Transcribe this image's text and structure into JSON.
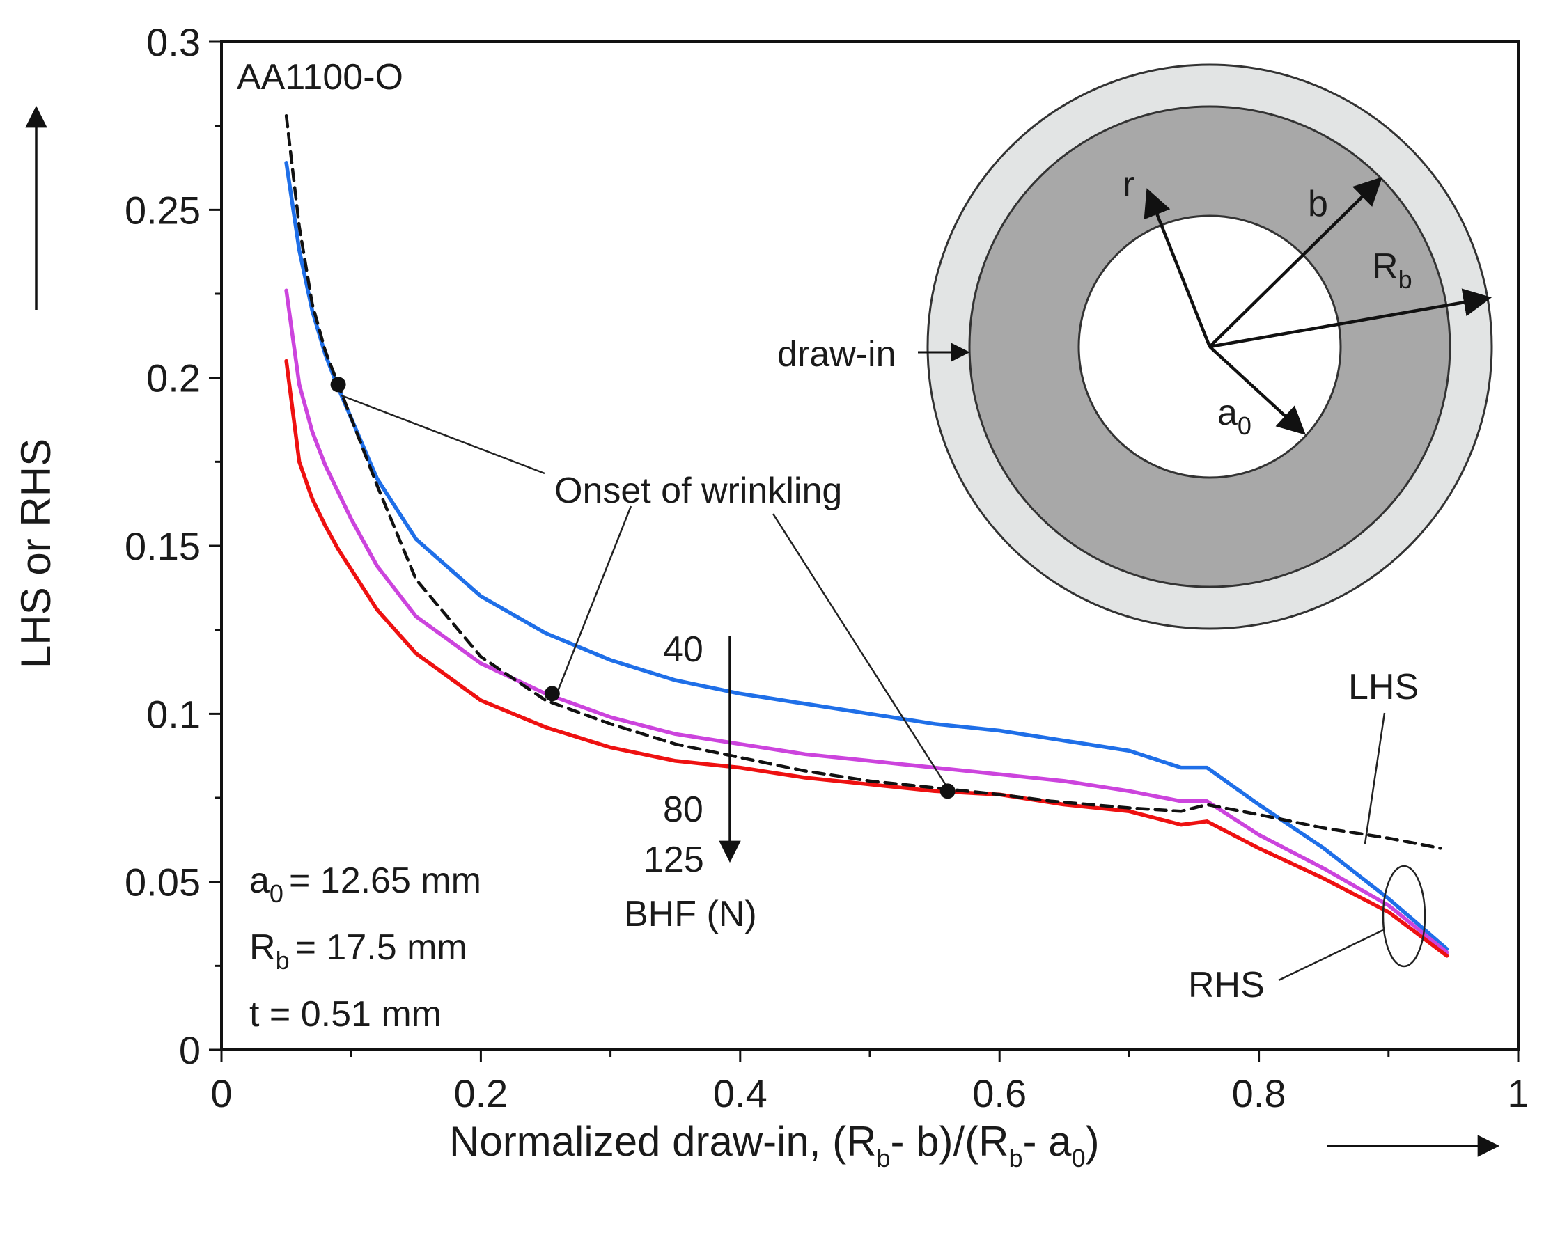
{
  "chart_data": {
    "type": "line",
    "title": "AA1100-O",
    "xlabel": "Normalized draw-in, (R",
    "xlabel_parts": {
      "part1": "Normalized draw-in, (R",
      "sub1": "b",
      "part2": "- b)/(R",
      "sub2": "b",
      "part3": "- a",
      "sub3": "0",
      "part4": ")"
    },
    "ylabel": "LHS or RHS",
    "xlim": [
      0,
      1
    ],
    "ylim": [
      0,
      0.3
    ],
    "xticks": [
      0,
      0.2,
      0.4,
      0.6,
      0.8,
      1
    ],
    "xtick_labels": [
      "0",
      "0.2",
      "0.4",
      "0.6",
      "0.8",
      "1"
    ],
    "yticks": [
      0,
      0.05,
      0.1,
      0.15,
      0.2,
      0.25,
      0.3
    ],
    "ytick_labels": [
      "0",
      "0.05",
      "0.1",
      "0.15",
      "0.2",
      "0.25",
      "0.3"
    ],
    "series": [
      {
        "name": "40",
        "role": "RHS",
        "color": "#1f6fe8",
        "x": [
          0.05,
          0.06,
          0.07,
          0.08,
          0.09,
          0.1,
          0.12,
          0.15,
          0.2,
          0.25,
          0.3,
          0.35,
          0.4,
          0.45,
          0.5,
          0.55,
          0.6,
          0.65,
          0.7,
          0.74,
          0.76,
          0.8,
          0.85,
          0.9,
          0.945
        ],
        "y": [
          0.264,
          0.238,
          0.22,
          0.207,
          0.197,
          0.188,
          0.17,
          0.152,
          0.135,
          0.124,
          0.116,
          0.11,
          0.106,
          0.103,
          0.1,
          0.097,
          0.095,
          0.092,
          0.089,
          0.084,
          0.084,
          0.073,
          0.06,
          0.045,
          0.03
        ]
      },
      {
        "name": "80",
        "role": "RHS",
        "color": "#cc44dd",
        "x": [
          0.05,
          0.06,
          0.07,
          0.08,
          0.09,
          0.1,
          0.12,
          0.15,
          0.2,
          0.25,
          0.3,
          0.35,
          0.4,
          0.45,
          0.5,
          0.55,
          0.6,
          0.65,
          0.7,
          0.74,
          0.76,
          0.8,
          0.85,
          0.9,
          0.945
        ],
        "y": [
          0.226,
          0.198,
          0.184,
          0.174,
          0.166,
          0.158,
          0.144,
          0.129,
          0.115,
          0.106,
          0.099,
          0.094,
          0.091,
          0.088,
          0.086,
          0.084,
          0.082,
          0.08,
          0.077,
          0.074,
          0.074,
          0.064,
          0.054,
          0.043,
          0.029
        ]
      },
      {
        "name": "125",
        "role": "RHS",
        "color": "#ee1111",
        "x": [
          0.05,
          0.06,
          0.07,
          0.08,
          0.09,
          0.1,
          0.12,
          0.15,
          0.2,
          0.25,
          0.3,
          0.35,
          0.4,
          0.45,
          0.5,
          0.55,
          0.6,
          0.65,
          0.7,
          0.74,
          0.76,
          0.8,
          0.85,
          0.9,
          0.945
        ],
        "y": [
          0.205,
          0.175,
          0.164,
          0.156,
          0.149,
          0.143,
          0.131,
          0.118,
          0.104,
          0.096,
          0.09,
          0.086,
          0.084,
          0.081,
          0.079,
          0.077,
          0.076,
          0.073,
          0.071,
          0.067,
          0.068,
          0.06,
          0.051,
          0.041,
          0.028
        ]
      },
      {
        "name": "LHS",
        "role": "LHS",
        "color": "#111111",
        "dashed": true,
        "x": [
          0.05,
          0.06,
          0.07,
          0.08,
          0.09,
          0.1,
          0.12,
          0.15,
          0.2,
          0.25,
          0.3,
          0.35,
          0.4,
          0.45,
          0.5,
          0.55,
          0.6,
          0.64,
          0.7,
          0.74,
          0.76,
          0.8,
          0.85,
          0.9,
          0.94
        ],
        "y": [
          0.278,
          0.245,
          0.222,
          0.208,
          0.198,
          0.188,
          0.168,
          0.14,
          0.117,
          0.104,
          0.097,
          0.091,
          0.087,
          0.083,
          0.08,
          0.078,
          0.076,
          0.074,
          0.072,
          0.071,
          0.073,
          0.07,
          0.066,
          0.063,
          0.06
        ]
      }
    ],
    "onset_points": [
      {
        "x": 0.09,
        "y": 0.198
      },
      {
        "x": 0.255,
        "y": 0.106
      },
      {
        "x": 0.56,
        "y": 0.077
      }
    ],
    "annotations": {
      "onset_label": "Onset of wrinkling",
      "bhf_title": "BHF (N)",
      "lhs_label": "LHS",
      "rhs_label": "RHS",
      "params": {
        "a0_main": "a",
        "a0_sub": "0",
        "a0_value": "= 12.65 mm",
        "rb_main": "R",
        "rb_sub": "b",
        "rb_value": "= 17.5 mm",
        "t_line": "t = 0.51 mm"
      },
      "inset": {
        "draw_in": "draw-in",
        "r": "r",
        "b": "b",
        "rb_main": "R",
        "rb_sub": "b",
        "a0_main": "a",
        "a0_sub": "0",
        "outer_fill": "#e2e4e4",
        "ring_fill": "#a8a8a8",
        "inner_fill": "#ffffff"
      }
    }
  }
}
